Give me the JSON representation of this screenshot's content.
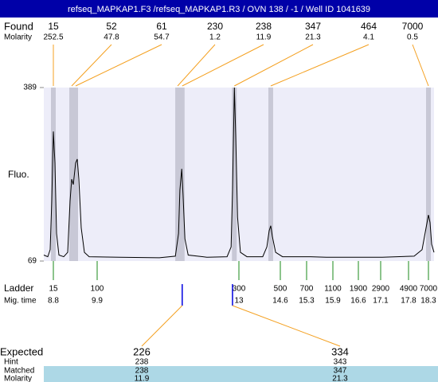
{
  "chart_data": {
    "type": "line",
    "title": "refseq_MAPKAP1.F3 /refseq_MAPKAP1.R3 / OVN 138 / -1 / Well ID 1041639",
    "y_label": "Fluo.",
    "ylim": [
      69,
      389
    ],
    "yticks": [
      69,
      389
    ],
    "xlim": [
      8.56,
      18.37
    ],
    "x": [
      8.56,
      8.66,
      8.72,
      8.76,
      8.8,
      8.84,
      8.88,
      8.94,
      9.06,
      9.16,
      9.22,
      9.26,
      9.3,
      9.36,
      9.4,
      9.44,
      9.5,
      9.58,
      9.7,
      10.39,
      11.26,
      11.61,
      11.68,
      11.71,
      11.75,
      11.78,
      11.82,
      11.89,
      12.3,
      12.74,
      12.83,
      12.86,
      12.9,
      12.93,
      12.97,
      13.06,
      13.31,
      13.92,
      14.08,
      14.17,
      14.23,
      14.29,
      14.42,
      14.66,
      15.39,
      15.75,
      16.38,
      17.14,
      17.94,
      18.14,
      18.24,
      18.3,
      18.32,
      18.34,
      18.37
    ],
    "series": [
      {
        "color": "#000000",
        "values": [
          80,
          77,
          90,
          180,
          308,
          250,
          120,
          80,
          77,
          85,
          180,
          220,
          210,
          250,
          257,
          220,
          130,
          85,
          77,
          76,
          75,
          78,
          120,
          200,
          239,
          190,
          110,
          80,
          76,
          77,
          95,
          200,
          389,
          300,
          150,
          85,
          77,
          77,
          95,
          125,
          134,
          115,
          85,
          77,
          77,
          76,
          76,
          76,
          78,
          90,
          130,
          154,
          140,
          100,
          85
        ]
      }
    ],
    "found": {
      "label": "Found",
      "molarity_label": "Molarity",
      "sizes": [
        15,
        52,
        61,
        230,
        238,
        347,
        464,
        7000
      ],
      "molarity": [
        252.5,
        47.8,
        54.7,
        1.2,
        11.9,
        21.3,
        4.1,
        0.5
      ],
      "x": [
        8.8,
        9.26,
        9.36,
        11.66,
        11.76,
        12.9,
        14.23,
        18.3
      ]
    },
    "ladder": {
      "label": "Ladder",
      "time_label": "Mig. time",
      "sizes": [
        15,
        100,
        300,
        500,
        700,
        1100,
        1900,
        2900,
        4900,
        7000
      ],
      "times": [
        8.8,
        9.9,
        13,
        14.6,
        15.3,
        15.9,
        16.6,
        17.1,
        17.8,
        18.3
      ]
    },
    "expected": {
      "label": "Expected",
      "hint_label": "Hint",
      "matched_label": "Matched",
      "molarity_label": "Molarity",
      "sizes": [
        226,
        334
      ],
      "hint": [
        238,
        343
      ],
      "matched": [
        238,
        347
      ],
      "molarity": [
        11.9,
        21.3
      ],
      "x": [
        11.76,
        12.86
      ]
    }
  }
}
